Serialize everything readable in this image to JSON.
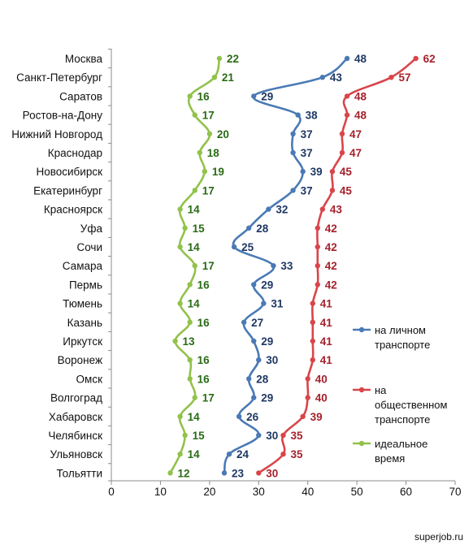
{
  "chart_data": {
    "type": "line",
    "orientation": "horizontal",
    "categories": [
      "Москва",
      "Санкт-Петербург",
      "Саратов",
      "Ростов-на-Дону",
      "Нижний Новгород",
      "Краснодар",
      "Новосибирск",
      "Екатеринбург",
      "Красноярск",
      "Уфа",
      "Сочи",
      "Самара",
      "Пермь",
      "Тюмень",
      "Казань",
      "Иркутск",
      "Воронеж",
      "Омск",
      "Волгоград",
      "Хабаровск",
      "Челябинск",
      "Ульяновск",
      "Тольятти"
    ],
    "series": [
      {
        "name": "на личном транспорте",
        "color": "#4a7ab5",
        "label_color": "#1f3864",
        "values": [
          48,
          43,
          29,
          38,
          37,
          37,
          39,
          37,
          32,
          28,
          25,
          33,
          29,
          31,
          27,
          29,
          30,
          28,
          29,
          26,
          30,
          24,
          23
        ]
      },
      {
        "name": "на общественном транспорте",
        "color": "#d9454a",
        "label_color": "#a5222c",
        "values": [
          62,
          57,
          48,
          48,
          47,
          47,
          45,
          45,
          43,
          42,
          42,
          42,
          42,
          41,
          41,
          41,
          41,
          40,
          40,
          39,
          35,
          35,
          30
        ]
      },
      {
        "name": "идеальное время",
        "color": "#92c24a",
        "label_color": "#2a6b16",
        "values": [
          22,
          21,
          16,
          17,
          20,
          18,
          19,
          17,
          14,
          15,
          14,
          17,
          16,
          14,
          16,
          13,
          16,
          16,
          17,
          14,
          15,
          14,
          12
        ]
      }
    ],
    "x_ticks": [
      "0",
      "10",
      "20",
      "30",
      "40",
      "50",
      "60",
      "70"
    ],
    "xlim": [
      0,
      70
    ],
    "legend_position": "right",
    "grid": false,
    "data_labels": true
  },
  "legend": {
    "items": [
      {
        "lines": [
          "на личном",
          "транспорте"
        ]
      },
      {
        "lines": [
          "на",
          "общественном",
          "транспорте"
        ]
      },
      {
        "lines": [
          "идеальное",
          "время"
        ]
      }
    ]
  },
  "credit": "superjob.ru"
}
